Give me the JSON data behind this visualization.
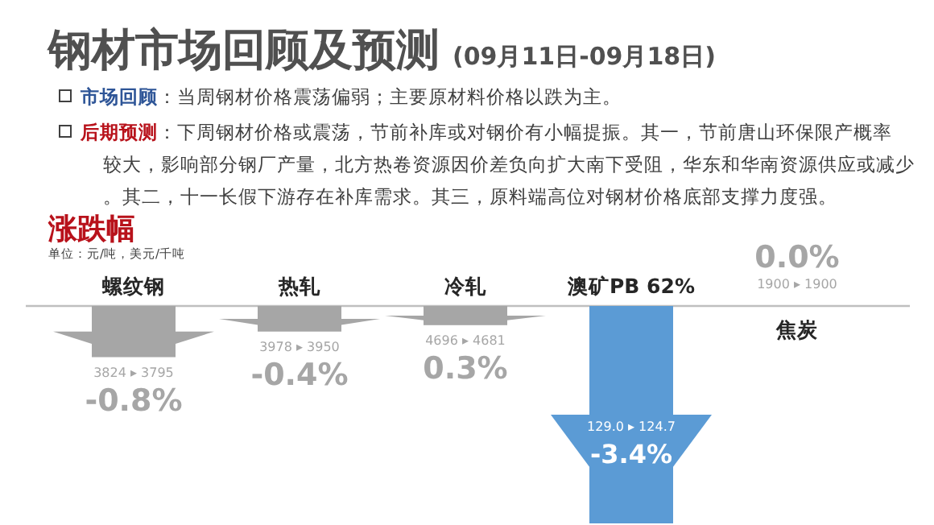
{
  "chart_data": {
    "type": "bar",
    "title": "钢材市场回顾及预测",
    "subtitle": "(09月11日-09月18日)",
    "annotations": [
      "**市场回顾**：当周钢材价格震荡偏弱；主要原材料价格以跌为主。",
      "**后期预测**：下周钢材价格或震荡，节前补库或对钢价有小幅提振。其一，节前唐山环保限产概率较大，影响部分钢厂产量，北方热卷资源因价差负向扩大南下受阻，华东和华南资源供应或减少。其二，十一长假下游存在补库需求。其三，原料端高位对钢材价格底部支撑力度强。",
      "涨跌幅",
      "单位：元/吨，美元/千吨",
      "3824 ▸ 3795",
      "3978 ▸ 3950",
      "4696 ▸ 4681",
      "129.0 ▸ 124.7",
      "1900 ▸ 1900",
      {
        "text": "0.3%",
        "x": "冷轧",
        "y": -0.3
      }
    ],
    "categories": [
      "螺纹钢",
      "热轧",
      "冷轧",
      "澳矿PB 62%",
      "焦炭"
    ],
    "values": [
      -0.8,
      -0.4,
      -0.3,
      -3.4,
      0.0
    ],
    "value_labels": [
      "-0.8%",
      "-0.4%",
      null,
      "-3.4%",
      "0.0%"
    ],
    "colors": [
      "#a6a6a6",
      "#a6a6a6",
      "#a6a6a6",
      "#5b9bd5",
      "#a6a6a6"
    ]
  }
}
